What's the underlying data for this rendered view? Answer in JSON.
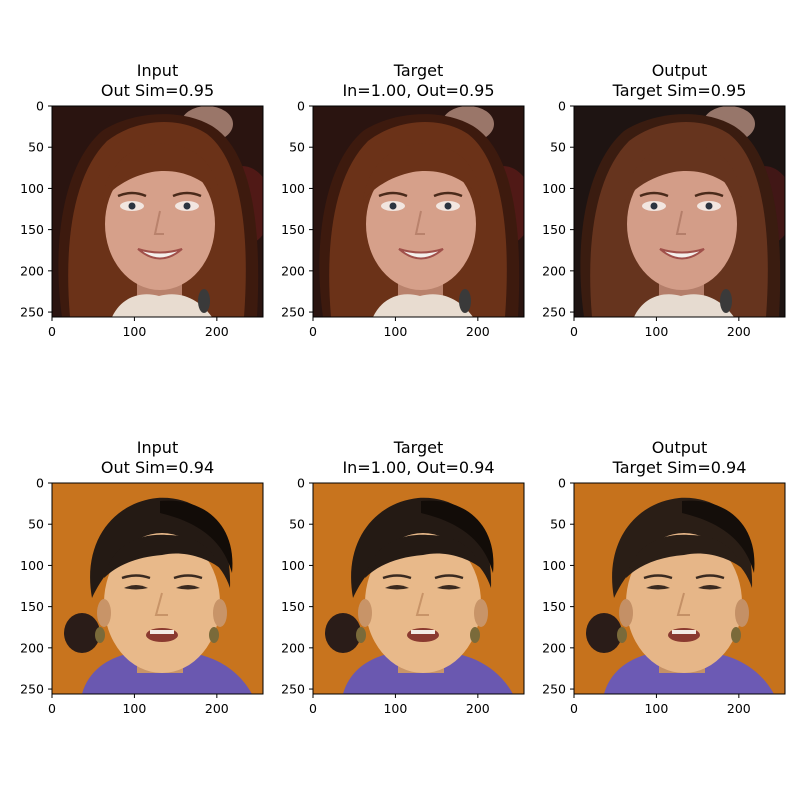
{
  "chart_data": {
    "type": "image_grid",
    "axes": {
      "x_ticks": [
        0,
        100,
        200
      ],
      "y_ticks": [
        0,
        50,
        100,
        150,
        200,
        250
      ],
      "xlim": [
        0,
        256
      ],
      "ylim": [
        256,
        0
      ]
    },
    "panels": [
      {
        "row": 0,
        "col": 0,
        "title_lines": [
          "Input",
          "Out Sim=0.95"
        ],
        "subject": "woman-auburn-hair",
        "palette": {
          "bg": "#2a1410",
          "bg2": "#5a1a18",
          "hair": "#6b3218",
          "hair_dark": "#3d1a0e",
          "skin": "#d6a08a",
          "skin_shade": "#b9826c",
          "clothes": "#e8dcd0"
        }
      },
      {
        "row": 0,
        "col": 1,
        "title_lines": [
          "Target",
          "In=1.00, Out=0.95"
        ],
        "subject": "woman-auburn-hair",
        "palette": {
          "bg": "#2a1410",
          "bg2": "#5a1a18",
          "hair": "#6b3218",
          "hair_dark": "#3d1a0e",
          "skin": "#d6a08a",
          "skin_shade": "#b9826c",
          "clothes": "#e8dcd0"
        }
      },
      {
        "row": 0,
        "col": 2,
        "title_lines": [
          "Output",
          "Target Sim=0.95"
        ],
        "subject": "woman-auburn-hair",
        "palette": {
          "bg": "#1e1412",
          "bg2": "#4a1818",
          "hair": "#66341e",
          "hair_dark": "#3a1c10",
          "skin": "#d39d88",
          "skin_shade": "#b47e6a",
          "clothes": "#e6dbd0"
        }
      },
      {
        "row": 1,
        "col": 0,
        "title_lines": [
          "Input",
          "Out Sim=0.94"
        ],
        "subject": "woman-dark-hair",
        "palette": {
          "bg": "#c8741e",
          "bg2": "#b5661a",
          "hair": "#241a14",
          "hair_dark": "#120c08",
          "skin": "#e8b98a",
          "skin_shade": "#c89468",
          "clothes": "#6a58b0"
        }
      },
      {
        "row": 1,
        "col": 1,
        "title_lines": [
          "Target",
          "In=1.00, Out=0.94"
        ],
        "subject": "woman-dark-hair",
        "palette": {
          "bg": "#c8741e",
          "bg2": "#b5661a",
          "hair": "#241a14",
          "hair_dark": "#120c08",
          "skin": "#e8b98a",
          "skin_shade": "#c89468",
          "clothes": "#6a58b0"
        }
      },
      {
        "row": 1,
        "col": 2,
        "title_lines": [
          "Output",
          "Target Sim=0.94"
        ],
        "subject": "woman-dark-hair",
        "palette": {
          "bg": "#c6721c",
          "bg2": "#b06218",
          "hair": "#2a1e16",
          "hair_dark": "#140e0a",
          "skin": "#e6b688",
          "skin_shade": "#c49066",
          "clothes": "#6c5ab4"
        }
      }
    ]
  }
}
